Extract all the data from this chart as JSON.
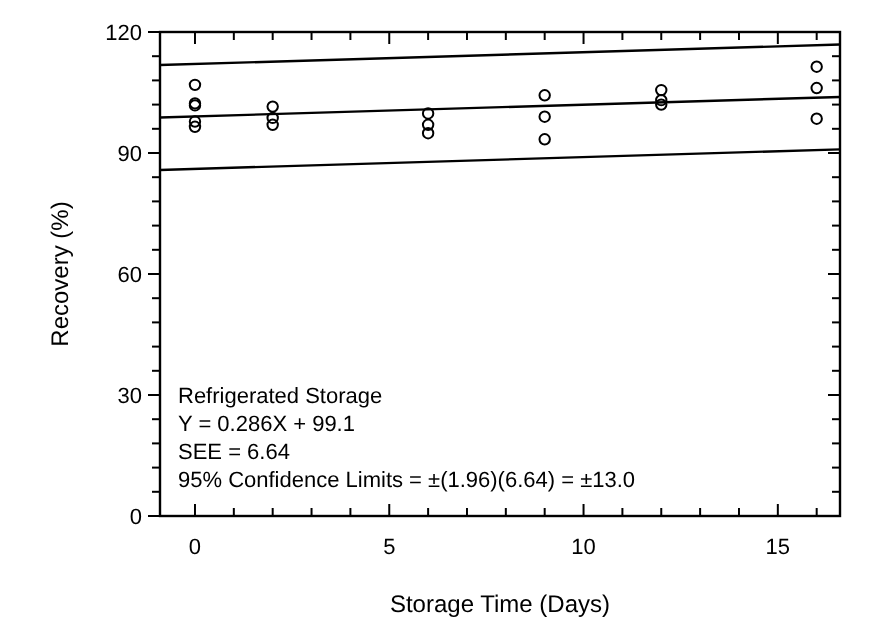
{
  "chart_data": {
    "type": "scatter",
    "xlabel": "Storage Time (Days)",
    "ylabel": "Recovery (%)",
    "xlim": [
      -0.9,
      16.6
    ],
    "ylim": [
      0,
      120
    ],
    "xticks": [
      0,
      {
        "value": 1,
        "label": null
      },
      {
        "value": 2,
        "label": null
      },
      {
        "value": 3,
        "label": null
      },
      {
        "value": 4,
        "label": null
      },
      5,
      {
        "value": 6,
        "label": null
      },
      {
        "value": 7,
        "label": null
      },
      {
        "value": 8,
        "label": null
      },
      {
        "value": 9,
        "label": null
      },
      10,
      {
        "value": 11,
        "label": null
      },
      {
        "value": 12,
        "label": null
      },
      {
        "value": 13,
        "label": null
      },
      {
        "value": 14,
        "label": null
      },
      15,
      {
        "value": 16,
        "label": null
      }
    ],
    "yticks": [
      0,
      {
        "value": 6,
        "label": null
      },
      {
        "value": 12,
        "label": null
      },
      {
        "value": 18,
        "label": null
      },
      {
        "value": 24,
        "label": null
      },
      30,
      {
        "value": 36,
        "label": null
      },
      {
        "value": 42,
        "label": null
      },
      {
        "value": 48,
        "label": null
      },
      {
        "value": 54,
        "label": null
      },
      60,
      {
        "value": 66,
        "label": null
      },
      {
        "value": 72,
        "label": null
      },
      {
        "value": 78,
        "label": null
      },
      {
        "value": 84,
        "label": null
      },
      90,
      {
        "value": 96,
        "label": null
      },
      {
        "value": 102,
        "label": null
      },
      {
        "value": 108,
        "label": null
      },
      {
        "value": 114,
        "label": null
      },
      120
    ],
    "marker": "circle",
    "grid": false,
    "series": [
      {
        "color": "#000000",
        "x": [
          0,
          0,
          0,
          0,
          0,
          2,
          2,
          2,
          6,
          6,
          6,
          9,
          9,
          9,
          12,
          12,
          12,
          16,
          16,
          16
        ],
        "values": [
          106.9,
          102.3,
          101.8,
          97.8,
          96.5,
          101.5,
          98.7,
          97,
          99.8,
          97,
          94.9,
          104.3,
          99,
          93.4,
          105.6,
          103.1,
          102,
          111.4,
          106.1,
          98.5
        ]
      },
      {
        "type": "line",
        "color": "#000000",
        "marker": "none",
        "x": [
          -0.9,
          16.6
        ],
        "values": [
          98.8,
          103.9
        ]
      },
      {
        "type": "line",
        "color": "#000000",
        "marker": "none",
        "x": [
          -0.9,
          16.6
        ],
        "values": [
          111.8,
          116.9
        ]
      },
      {
        "type": "line",
        "color": "#000000",
        "marker": "none",
        "x": [
          -0.9,
          16.6
        ],
        "values": [
          85.8,
          90.9
        ]
      }
    ],
    "annotations": [
      "Refrigerated Storage",
      "Y = 0.286X + 99.1",
      "SEE = 6.64",
      "95% Confidence Limits = ±(1.96)(6.64) = ±13.0"
    ]
  }
}
